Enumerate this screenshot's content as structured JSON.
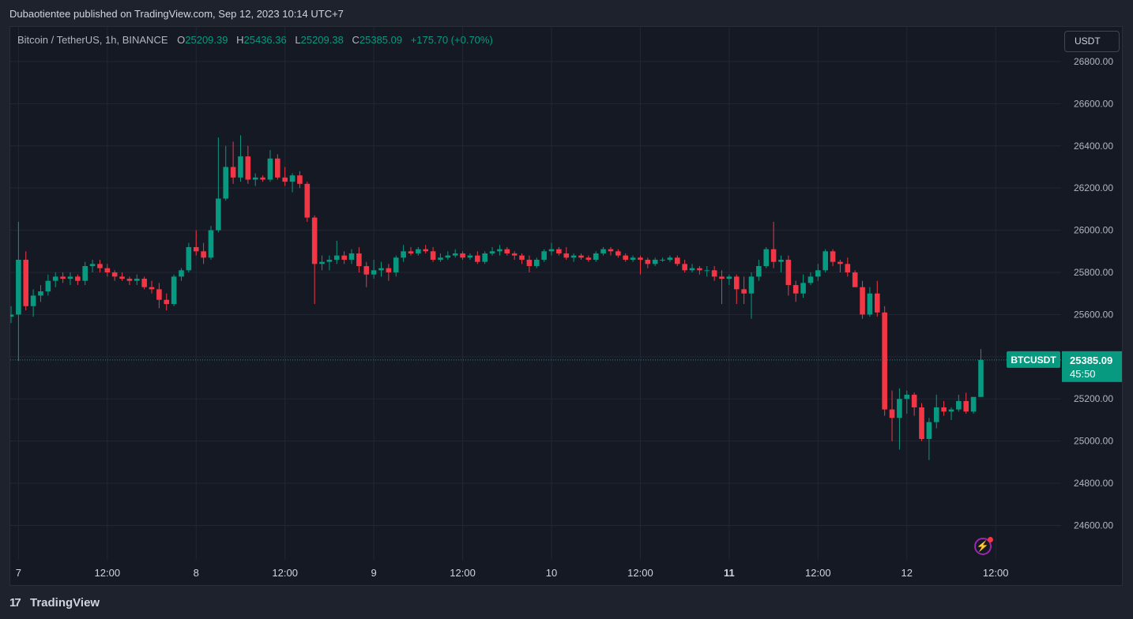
{
  "publisher_line": "Dubaotientee published on TradingView.com, Sep 12, 2023 10:14 UTC+7",
  "legend": {
    "symbol": "Bitcoin / TetherUS, 1h, BINANCE",
    "o_label": "O",
    "o": "25209.39",
    "h_label": "H",
    "h": "25436.36",
    "l_label": "L",
    "l": "25209.38",
    "c_label": "C",
    "c": "25385.09",
    "change": "+175.70 (+0.70%)"
  },
  "currency_button": "USDT",
  "price_tag": {
    "symbol": "BTCUSDT",
    "price": "25385.09",
    "countdown": "45:50"
  },
  "brand": {
    "logo_glyph": "17",
    "name": "TradingView"
  },
  "flash_icon": "lightning-icon",
  "colors": {
    "up": "#089981",
    "down": "#f23645",
    "background": "#151924",
    "grid": "#232733"
  },
  "chart_data": {
    "type": "candlestick",
    "interval": "1h",
    "ylim": [
      24430,
      26850
    ],
    "y_ticks": [
      "26800.00",
      "26600.00",
      "26400.00",
      "26200.00",
      "26000.00",
      "25800.00",
      "25600.00",
      "25400.00",
      "25200.00",
      "25000.00",
      "24800.00",
      "24600.00"
    ],
    "x_ticks": [
      {
        "label": "7",
        "bold": false,
        "index": 1
      },
      {
        "label": "12:00",
        "bold": false,
        "index": 13
      },
      {
        "label": "8",
        "bold": false,
        "index": 25
      },
      {
        "label": "12:00",
        "bold": false,
        "index": 37
      },
      {
        "label": "9",
        "bold": false,
        "index": 49
      },
      {
        "label": "12:00",
        "bold": false,
        "index": 61
      },
      {
        "label": "10",
        "bold": false,
        "index": 73
      },
      {
        "label": "12:00",
        "bold": false,
        "index": 85
      },
      {
        "label": "11",
        "bold": true,
        "index": 97
      },
      {
        "label": "12:00",
        "bold": false,
        "index": 109
      },
      {
        "label": "12",
        "bold": false,
        "index": 121
      },
      {
        "label": "12:00",
        "bold": false,
        "index": 133
      }
    ],
    "last_close": 25385.09,
    "candles": [
      [
        25590,
        25640,
        25560,
        25600
      ],
      [
        25600,
        26040,
        25380,
        25860
      ],
      [
        25860,
        25900,
        25620,
        25640
      ],
      [
        25640,
        25720,
        25590,
        25690
      ],
      [
        25690,
        25740,
        25660,
        25710
      ],
      [
        25710,
        25790,
        25690,
        25760
      ],
      [
        25760,
        25800,
        25730,
        25780
      ],
      [
        25780,
        25800,
        25750,
        25770
      ],
      [
        25770,
        25800,
        25740,
        25780
      ],
      [
        25780,
        25790,
        25740,
        25760
      ],
      [
        25760,
        25850,
        25740,
        25830
      ],
      [
        25830,
        25860,
        25800,
        25840
      ],
      [
        25840,
        25860,
        25800,
        25820
      ],
      [
        25820,
        25840,
        25780,
        25800
      ],
      [
        25800,
        25810,
        25760,
        25780
      ],
      [
        25780,
        25800,
        25760,
        25770
      ],
      [
        25770,
        25780,
        25740,
        25760
      ],
      [
        25760,
        25790,
        25740,
        25770
      ],
      [
        25770,
        25780,
        25720,
        25730
      ],
      [
        25730,
        25760,
        25700,
        25720
      ],
      [
        25720,
        25750,
        25630,
        25670
      ],
      [
        25670,
        25700,
        25620,
        25650
      ],
      [
        25650,
        25790,
        25640,
        25780
      ],
      [
        25780,
        25820,
        25760,
        25810
      ],
      [
        25810,
        25940,
        25800,
        25920
      ],
      [
        25920,
        26000,
        25880,
        25900
      ],
      [
        25900,
        25940,
        25840,
        25870
      ],
      [
        25870,
        26020,
        25860,
        26000
      ],
      [
        26000,
        26440,
        25990,
        26150
      ],
      [
        26150,
        26400,
        26140,
        26300
      ],
      [
        26300,
        26420,
        26220,
        26250
      ],
      [
        26250,
        26450,
        26230,
        26350
      ],
      [
        26350,
        26400,
        26220,
        26240
      ],
      [
        26240,
        26270,
        26210,
        26250
      ],
      [
        26250,
        26260,
        26230,
        26240
      ],
      [
        26240,
        26380,
        26230,
        26340
      ],
      [
        26340,
        26360,
        26240,
        26250
      ],
      [
        26250,
        26300,
        26210,
        26230
      ],
      [
        26230,
        26270,
        26180,
        26260
      ],
      [
        26260,
        26280,
        26200,
        26220
      ],
      [
        26220,
        26230,
        26040,
        26060
      ],
      [
        26060,
        26070,
        25650,
        25840
      ],
      [
        25840,
        25880,
        25810,
        25850
      ],
      [
        25850,
        25880,
        25810,
        25860
      ],
      [
        25860,
        25950,
        25840,
        25880
      ],
      [
        25880,
        25900,
        25840,
        25860
      ],
      [
        25860,
        25910,
        25840,
        25890
      ],
      [
        25890,
        25920,
        25800,
        25830
      ],
      [
        25830,
        25850,
        25730,
        25790
      ],
      [
        25790,
        25860,
        25770,
        25810
      ],
      [
        25810,
        25850,
        25780,
        25820
      ],
      [
        25820,
        25840,
        25760,
        25800
      ],
      [
        25800,
        25880,
        25780,
        25870
      ],
      [
        25870,
        25930,
        25850,
        25900
      ],
      [
        25900,
        25920,
        25880,
        25890
      ],
      [
        25890,
        25920,
        25880,
        25910
      ],
      [
        25910,
        25930,
        25890,
        25900
      ],
      [
        25900,
        25920,
        25850,
        25860
      ],
      [
        25860,
        25890,
        25850,
        25870
      ],
      [
        25870,
        25900,
        25860,
        25880
      ],
      [
        25880,
        25910,
        25870,
        25890
      ],
      [
        25890,
        25900,
        25860,
        25870
      ],
      [
        25870,
        25890,
        25860,
        25880
      ],
      [
        25880,
        25900,
        25840,
        25850
      ],
      [
        25850,
        25900,
        25840,
        25890
      ],
      [
        25890,
        25920,
        25880,
        25900
      ],
      [
        25900,
        25930,
        25880,
        25910
      ],
      [
        25910,
        25920,
        25880,
        25890
      ],
      [
        25890,
        25900,
        25860,
        25880
      ],
      [
        25880,
        25890,
        25840,
        25860
      ],
      [
        25860,
        25880,
        25800,
        25830
      ],
      [
        25830,
        25870,
        25820,
        25860
      ],
      [
        25860,
        25910,
        25850,
        25900
      ],
      [
        25900,
        25940,
        25880,
        25910
      ],
      [
        25910,
        25920,
        25880,
        25890
      ],
      [
        25890,
        25920,
        25860,
        25870
      ],
      [
        25870,
        25890,
        25850,
        25880
      ],
      [
        25880,
        25890,
        25860,
        25870
      ],
      [
        25870,
        25880,
        25850,
        25860
      ],
      [
        25860,
        25900,
        25850,
        25890
      ],
      [
        25890,
        25920,
        25880,
        25910
      ],
      [
        25910,
        25920,
        25880,
        25900
      ],
      [
        25900,
        25910,
        25870,
        25880
      ],
      [
        25880,
        25890,
        25850,
        25860
      ],
      [
        25860,
        25880,
        25850,
        25870
      ],
      [
        25870,
        25880,
        25790,
        25860
      ],
      [
        25860,
        25870,
        25820,
        25840
      ],
      [
        25840,
        25870,
        25830,
        25860
      ],
      [
        25860,
        25870,
        25850,
        25860
      ],
      [
        25860,
        25880,
        25850,
        25870
      ],
      [
        25870,
        25880,
        25830,
        25840
      ],
      [
        25840,
        25860,
        25800,
        25810
      ],
      [
        25810,
        25840,
        25800,
        25820
      ],
      [
        25820,
        25830,
        25790,
        25810
      ],
      [
        25810,
        25830,
        25780,
        25810
      ],
      [
        25810,
        25830,
        25760,
        25780
      ],
      [
        25780,
        25810,
        25650,
        25770
      ],
      [
        25770,
        25790,
        25740,
        25780
      ],
      [
        25780,
        25790,
        25650,
        25720
      ],
      [
        25720,
        25780,
        25650,
        25700
      ],
      [
        25700,
        25800,
        25580,
        25780
      ],
      [
        25780,
        25860,
        25760,
        25830
      ],
      [
        25830,
        25920,
        25820,
        25910
      ],
      [
        25910,
        26040,
        25820,
        25850
      ],
      [
        25850,
        25880,
        25800,
        25860
      ],
      [
        25860,
        25880,
        25690,
        25740
      ],
      [
        25740,
        25760,
        25660,
        25700
      ],
      [
        25700,
        25790,
        25680,
        25750
      ],
      [
        25750,
        25800,
        25740,
        25780
      ],
      [
        25780,
        25840,
        25760,
        25810
      ],
      [
        25810,
        25910,
        25800,
        25900
      ],
      [
        25900,
        25910,
        25830,
        25850
      ],
      [
        25850,
        25860,
        25800,
        25840
      ],
      [
        25840,
        25870,
        25780,
        25800
      ],
      [
        25800,
        25810,
        25730,
        25730
      ],
      [
        25730,
        25760,
        25580,
        25600
      ],
      [
        25600,
        25730,
        25590,
        25700
      ],
      [
        25700,
        25760,
        25590,
        25610
      ],
      [
        25610,
        25640,
        25120,
        25150
      ],
      [
        25150,
        25240,
        25000,
        25110
      ],
      [
        25110,
        25250,
        24960,
        25200
      ],
      [
        25200,
        25240,
        25130,
        25220
      ],
      [
        25220,
        25230,
        25120,
        25160
      ],
      [
        25160,
        25180,
        25000,
        25010
      ],
      [
        25010,
        25110,
        24910,
        25090
      ],
      [
        25090,
        25220,
        25060,
        25160
      ],
      [
        25160,
        25190,
        25120,
        25140
      ],
      [
        25140,
        25160,
        25100,
        25150
      ],
      [
        25150,
        25220,
        25140,
        25190
      ],
      [
        25190,
        25230,
        25130,
        25140
      ],
      [
        25140,
        25200,
        25130,
        25209.39
      ],
      [
        25209.39,
        25436.36,
        25209.38,
        25385.09
      ]
    ]
  }
}
